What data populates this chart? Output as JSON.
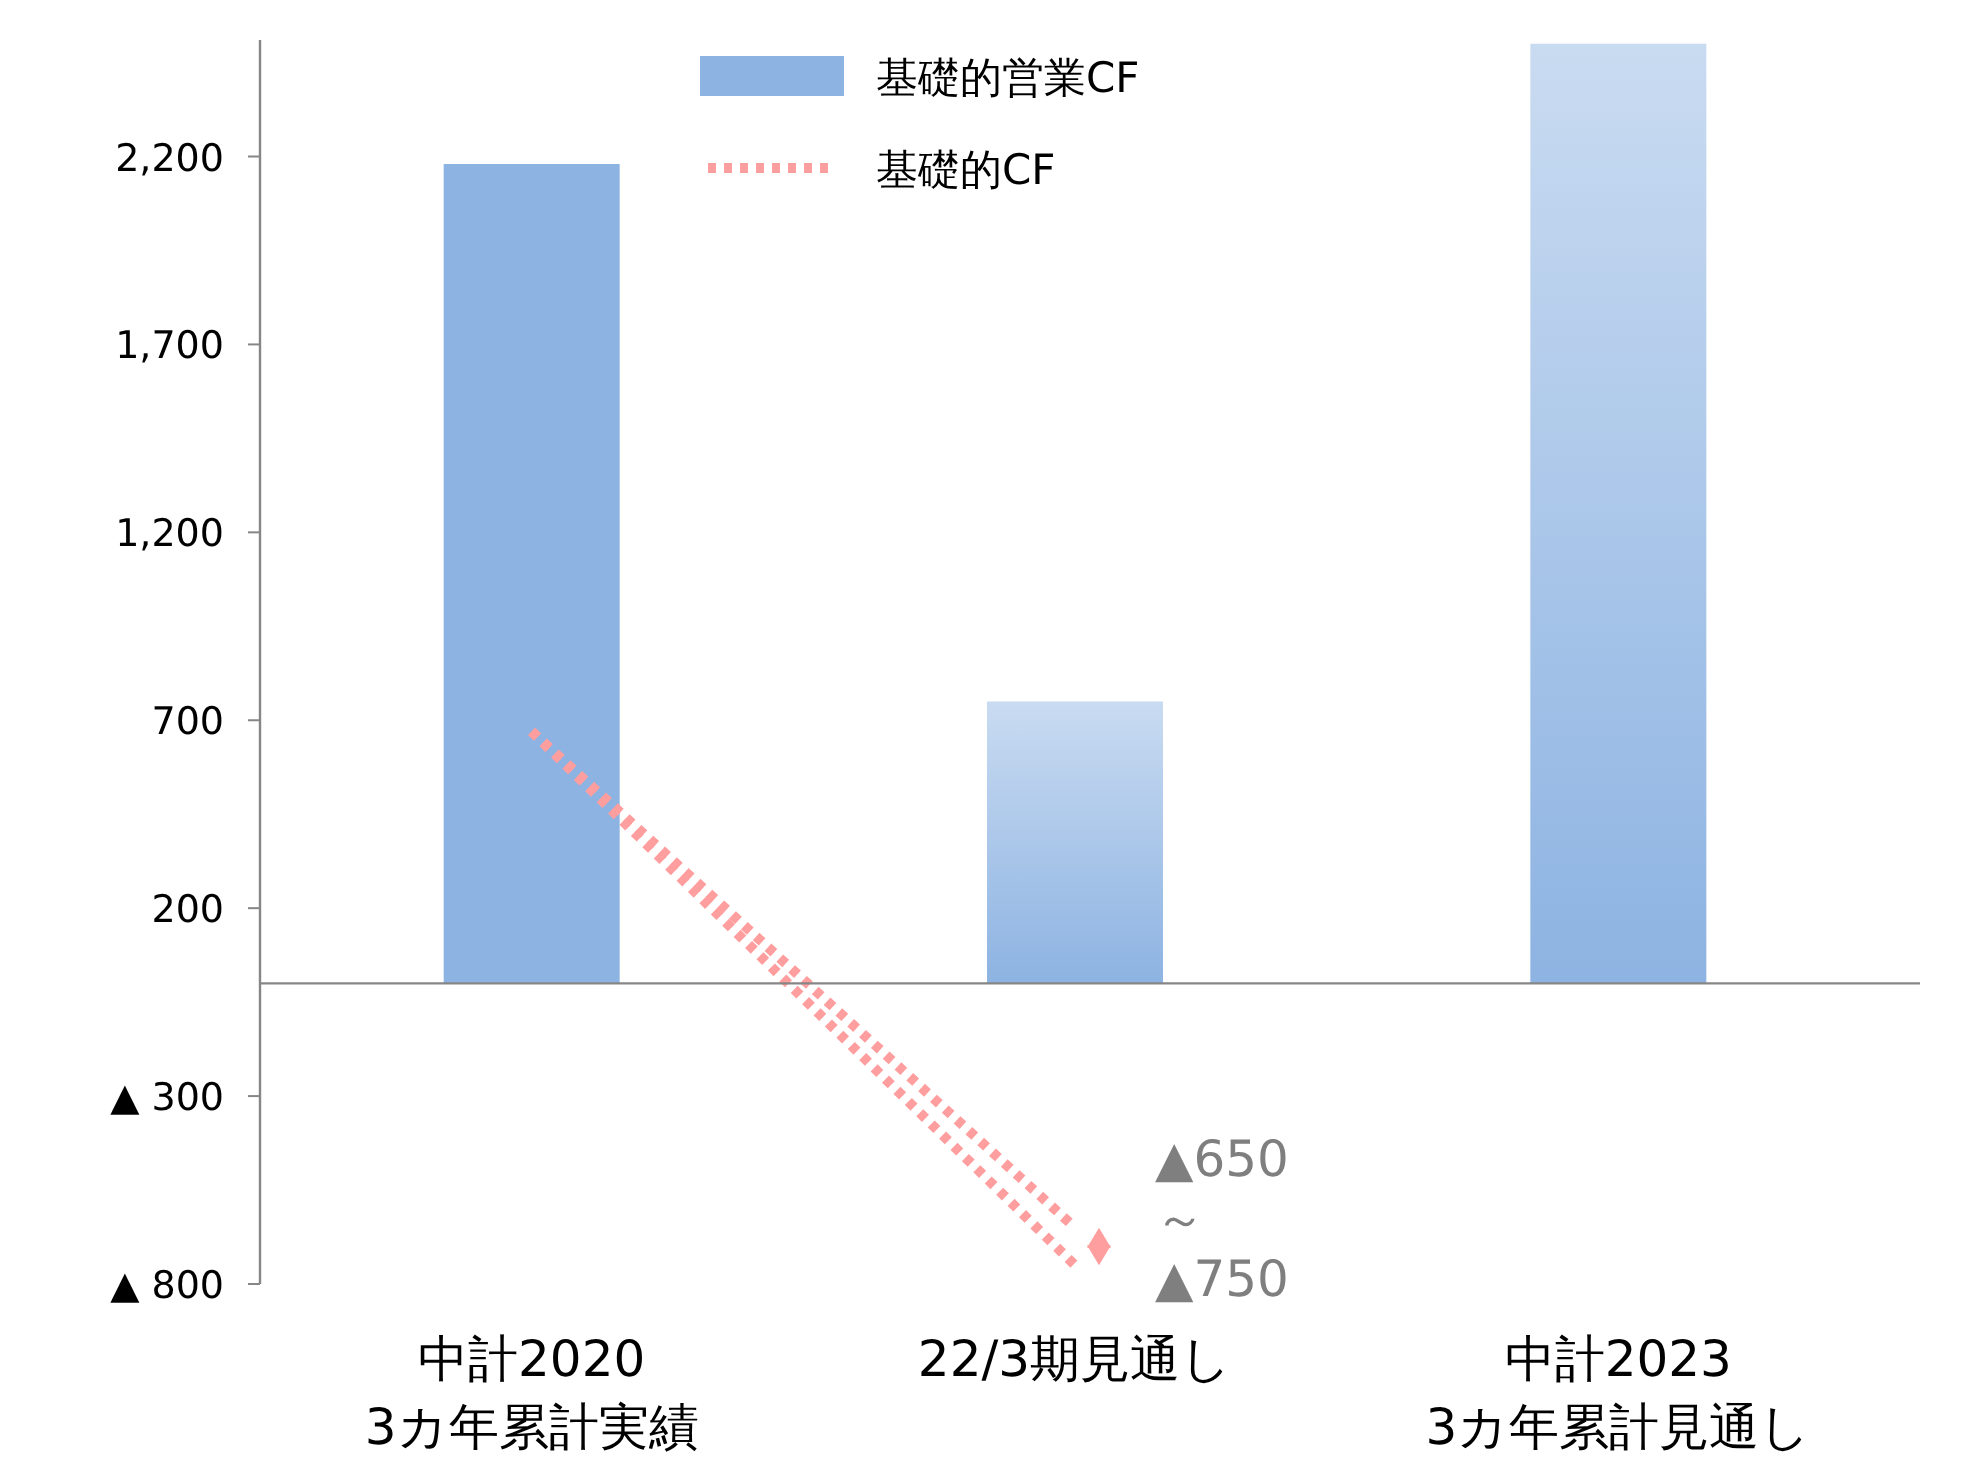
{
  "chart_data": {
    "type": "bar",
    "categories": [
      "中計2020\n3カ年累計実績",
      "22/3期見通し",
      "中計2023\n3カ年累計見通し"
    ],
    "series": [
      {
        "name": "基礎的営業CF",
        "color": "#8db3e2",
        "values": [
          2180,
          750,
          2500
        ]
      },
      {
        "name": "基礎的CF",
        "type": "line",
        "color": "#ff9e9e",
        "line_style": "dotted",
        "values": [
          670,
          -650,
          null
        ]
      },
      {
        "type": "line",
        "color": "#ff9e9e",
        "line_style": "dotted",
        "values": [
          670,
          -750,
          null
        ]
      }
    ],
    "ylim": [
      -800,
      2510
    ],
    "yticks": [
      {
        "value": -800,
        "label": "▲ 800"
      },
      {
        "value": -300,
        "label": "▲ 300"
      },
      200,
      700,
      {
        "value": 1200,
        "label": "1,200"
      },
      {
        "value": 1700,
        "label": "1,700"
      },
      {
        "value": 2200,
        "label": "2,200"
      }
    ],
    "annotations": [
      "▲650",
      "～",
      "▲750"
    ],
    "legend": "top",
    "grid": false
  }
}
